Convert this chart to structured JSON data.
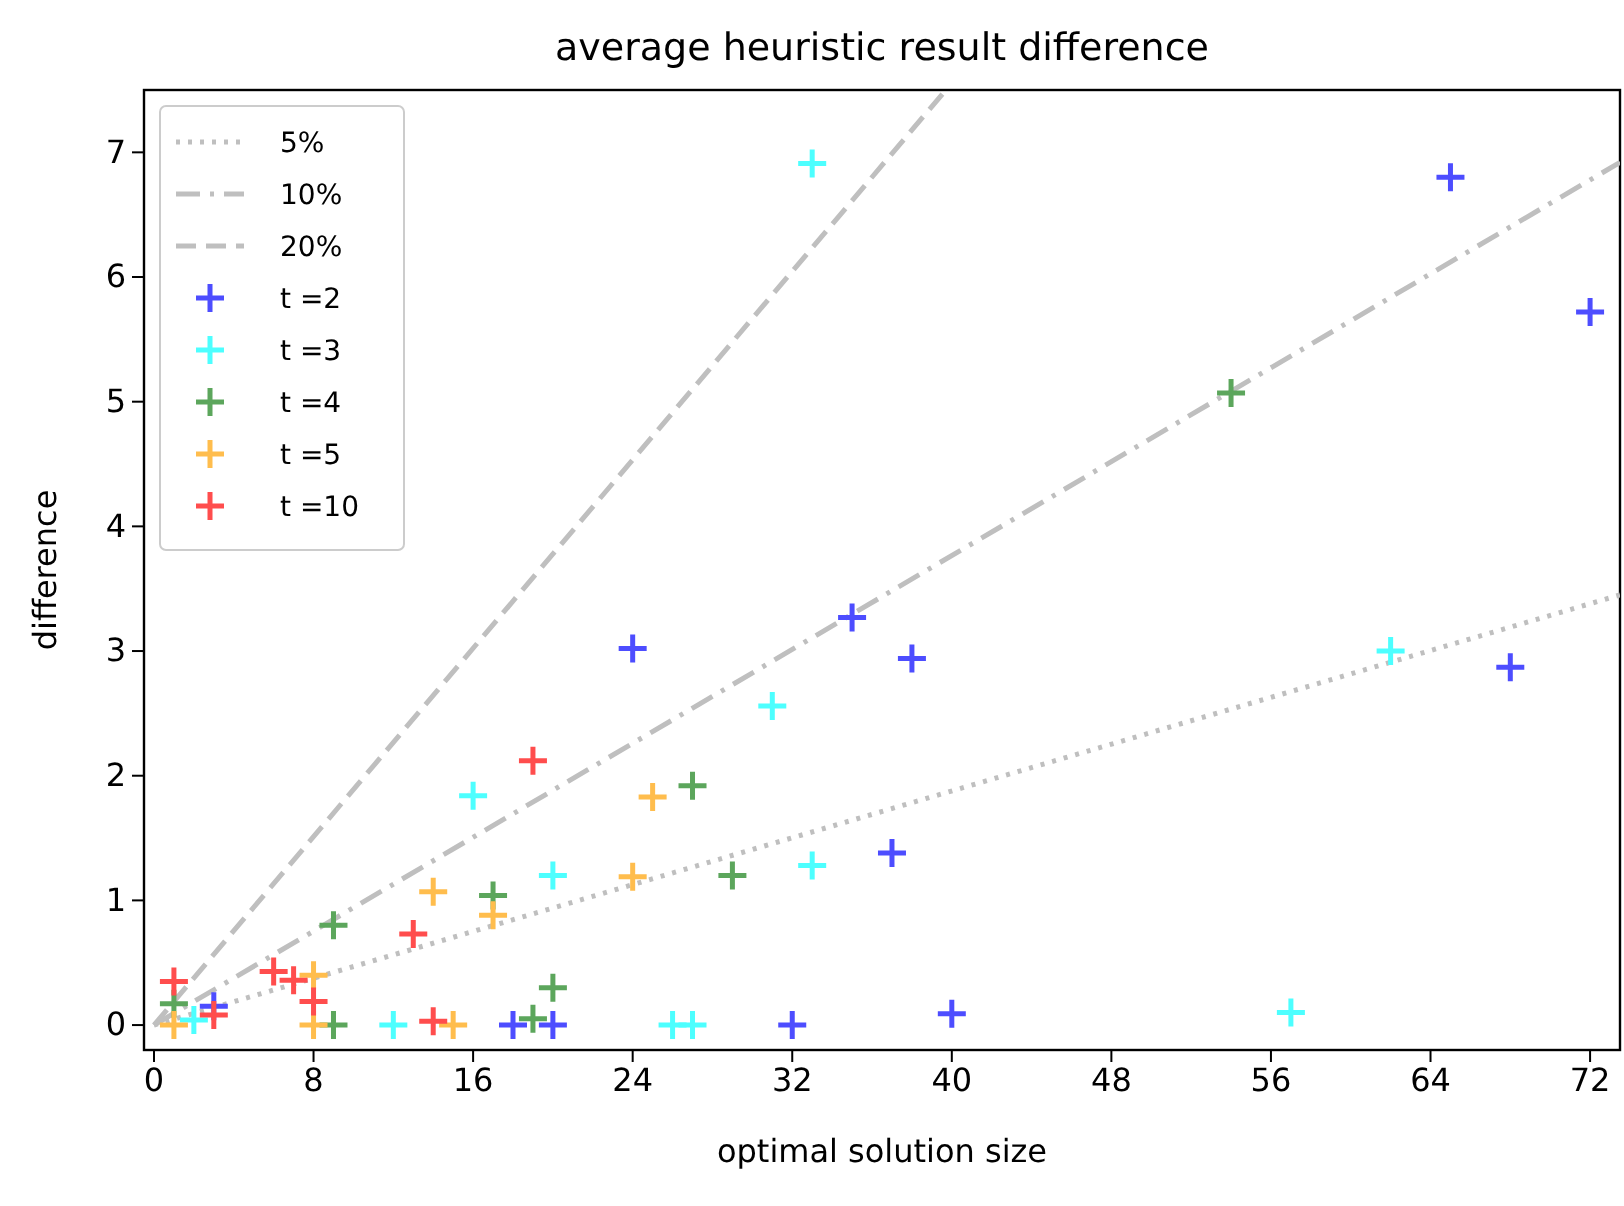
{
  "chart_data": {
    "type": "scatter",
    "title": "average heuristic result difference",
    "xlabel": "optimal solution size",
    "ylabel": "difference",
    "xlim": [
      -0.5,
      73.5
    ],
    "ylim": [
      -0.2,
      7.5
    ],
    "xticks": [
      0,
      8,
      16,
      24,
      32,
      40,
      48,
      56,
      64,
      72
    ],
    "yticks": [
      0,
      1,
      2,
      3,
      4,
      5,
      6,
      7
    ],
    "grid": false,
    "legend": "top left",
    "marker": "cross",
    "series": [
      {
        "name": "5%",
        "type": "line",
        "line_style": "dotted",
        "marker": "none",
        "color": "#bfbfbf",
        "x": [
          0,
          73.5
        ],
        "values": [
          0,
          3.45
        ]
      },
      {
        "name": "10%",
        "type": "line",
        "line_style": "dashdot",
        "marker": "none",
        "color": "#bfbfbf",
        "x": [
          0,
          73.5
        ],
        "values": [
          0,
          6.92
        ]
      },
      {
        "name": "20%",
        "type": "line",
        "line_style": "dashed",
        "marker": "none",
        "color": "#bfbfbf",
        "x": [
          0,
          39.7
        ],
        "values": [
          0,
          7.5
        ]
      },
      {
        "name": "t =2",
        "color": "#4d4dff",
        "x": [
          3,
          24,
          35,
          38,
          37,
          40,
          32,
          65,
          72,
          68,
          18,
          20
        ],
        "values": [
          0.15,
          3.02,
          3.27,
          2.94,
          1.38,
          0.09,
          0,
          6.8,
          5.72,
          2.87,
          0,
          0
        ]
      },
      {
        "name": "t =3",
        "color": "#4dffff",
        "x": [
          33,
          16,
          31,
          20,
          33,
          62,
          57,
          26,
          27,
          12,
          2
        ],
        "values": [
          6.91,
          1.84,
          2.56,
          1.2,
          1.28,
          3.0,
          0.1,
          0,
          0,
          0,
          0.04
        ]
      },
      {
        "name": "t =4",
        "color": "#5ca65c",
        "x": [
          54,
          27,
          29,
          17,
          9,
          9,
          20,
          19,
          1
        ],
        "values": [
          5.07,
          1.92,
          1.2,
          1.04,
          0.8,
          0,
          0.3,
          0.05,
          0.17
        ]
      },
      {
        "name": "t =5",
        "color": "#ffbd4d",
        "x": [
          25,
          24,
          14,
          17,
          8,
          8,
          15,
          1
        ],
        "values": [
          1.83,
          1.19,
          1.07,
          0.88,
          0.4,
          0,
          0,
          0
        ]
      },
      {
        "name": "t =10",
        "color": "#ff4d4d",
        "x": [
          19,
          13,
          6,
          7,
          8,
          14,
          1,
          3
        ],
        "values": [
          2.12,
          0.73,
          0.43,
          0.36,
          0.19,
          0.03,
          0.35,
          0.08
        ]
      }
    ]
  }
}
